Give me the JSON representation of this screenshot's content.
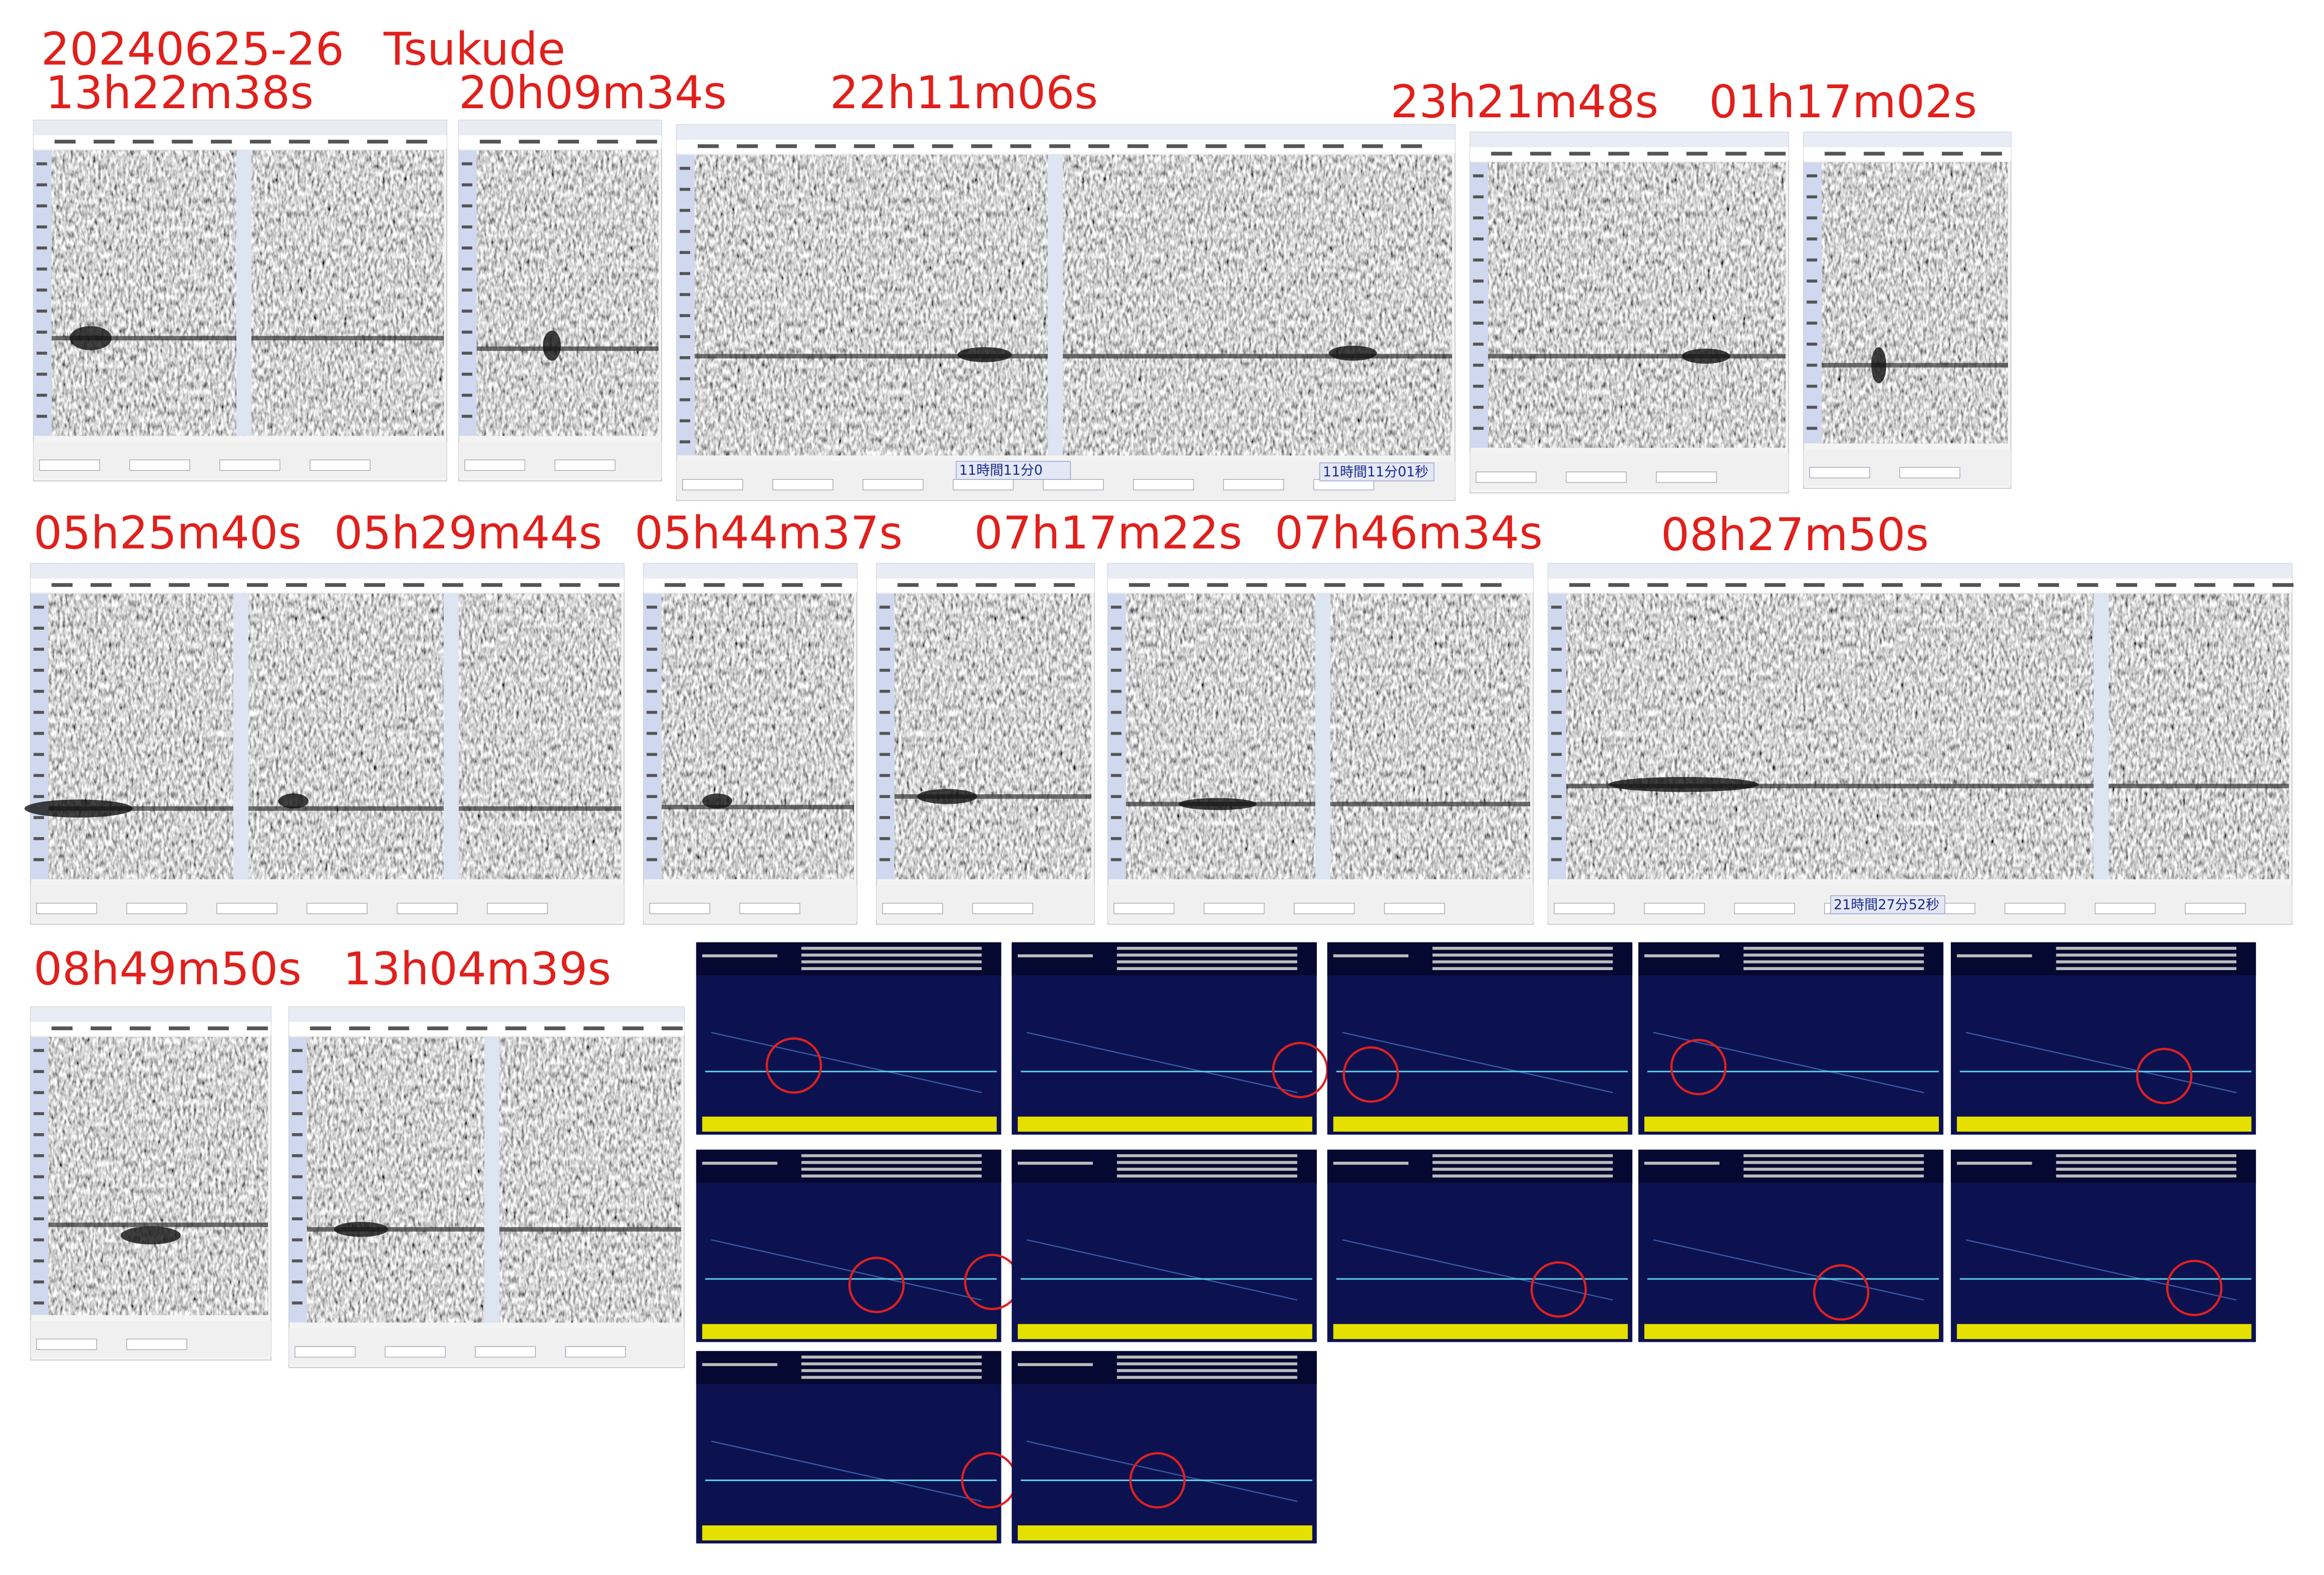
{
  "header": {
    "date": "20240625-26",
    "location": "Tsukude"
  },
  "captures": [
    "13h22m38s",
    "20h09m34s",
    "22h11m06s",
    "23h21m48s",
    "01h17m02s",
    "05h25m40s",
    "05h29m44s",
    "05h44m37s",
    "07h17m22s",
    "07h46m34s",
    "08h27m50s",
    "08h49m50s",
    "13h04m39s"
  ],
  "panel_labels": [
    "11時間11分0",
    "11時間11分01秒",
    "21時間27分52秒"
  ]
}
